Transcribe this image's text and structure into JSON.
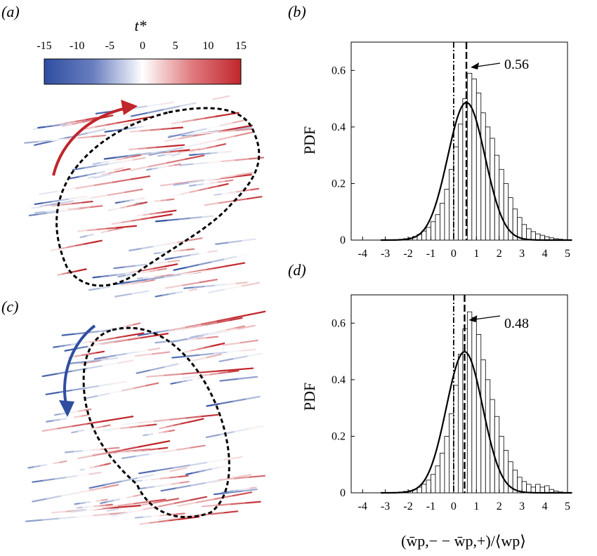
{
  "panels": {
    "a": {
      "label": "(a)",
      "colorbar": {
        "title": "t*",
        "ticks": [
          "-15",
          "-10",
          "-5",
          "0",
          "5",
          "10",
          "15"
        ],
        "range": [
          -15,
          15
        ]
      },
      "arrow_color": "#c0262c",
      "dash_color": "#000000"
    },
    "c": {
      "label": "(c)",
      "arrow_color": "#2f4ea0",
      "dash_color": "#000000"
    }
  },
  "chart_data": [
    {
      "panel": "b",
      "type": "bar",
      "label": "(b)",
      "ylabel": "PDF",
      "xlabel": "",
      "xlim": [
        -4.5,
        5
      ],
      "ylim": [
        0,
        0.7
      ],
      "x_ticks": [
        "-4",
        "-3",
        "-2",
        "-1",
        "0",
        "1",
        "2",
        "3",
        "4",
        "5"
      ],
      "y_ticks": [
        "0",
        "0.2",
        "0.4",
        "0.6"
      ],
      "bin_width": 0.2,
      "bin_start": -2.4,
      "values": [
        0.003,
        0.005,
        0.008,
        0.013,
        0.02,
        0.032,
        0.045,
        0.065,
        0.09,
        0.13,
        0.18,
        0.25,
        0.33,
        0.41,
        0.5,
        0.59,
        0.57,
        0.52,
        0.45,
        0.4,
        0.36,
        0.3,
        0.25,
        0.2,
        0.15,
        0.11,
        0.08,
        0.055,
        0.04,
        0.03,
        0.022,
        0.017,
        0.012,
        0.008,
        0.005,
        0.003
      ],
      "fit": {
        "mean": 0.56,
        "sigma": 0.82
      },
      "zero_line": 0,
      "mean_line": 0.56,
      "annotation": "0.56"
    },
    {
      "panel": "d",
      "type": "bar",
      "label": "(d)",
      "ylabel": "PDF",
      "xlabel": "(w̄p,− − w̄p,+)/⟨wp⟩",
      "xlim": [
        -4.5,
        5
      ],
      "ylim": [
        0,
        0.7
      ],
      "x_ticks": [
        "-4",
        "-3",
        "-2",
        "-1",
        "0",
        "1",
        "2",
        "3",
        "4",
        "5"
      ],
      "y_ticks": [
        "0",
        "0.2",
        "0.4",
        "0.6"
      ],
      "bin_width": 0.2,
      "bin_start": -2.4,
      "values": [
        0.003,
        0.005,
        0.008,
        0.012,
        0.02,
        0.03,
        0.045,
        0.065,
        0.095,
        0.14,
        0.2,
        0.28,
        0.38,
        0.49,
        0.58,
        0.64,
        0.62,
        0.56,
        0.47,
        0.4,
        0.33,
        0.27,
        0.2,
        0.15,
        0.11,
        0.08,
        0.055,
        0.04,
        0.03,
        0.02,
        0.03,
        0.02,
        0.025,
        0.012,
        0.006,
        0.003
      ],
      "fit": {
        "mean": 0.48,
        "sigma": 0.8
      },
      "zero_line": 0,
      "mean_line": 0.48,
      "annotation": "0.48"
    }
  ]
}
